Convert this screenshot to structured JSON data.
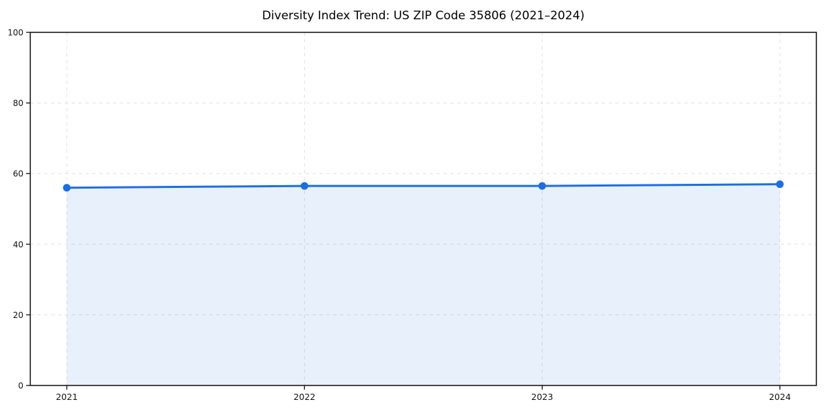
{
  "chart_data": {
    "type": "area",
    "title": "Diversity Index Trend: US ZIP Code 35806 (2021–2024)",
    "categories": [
      "2021",
      "2022",
      "2023",
      "2024"
    ],
    "series": [
      {
        "name": "Diversity Index",
        "values": [
          56,
          56.5,
          56.5,
          57
        ]
      }
    ],
    "xlabel": "",
    "ylabel": "",
    "ylim": [
      0,
      100
    ],
    "yticks": [
      0,
      20,
      40,
      60,
      80,
      100
    ],
    "grid": "dashed",
    "legend_position": "none",
    "line_color": "#1b6ee3",
    "marker_color": "#1b6ee3",
    "fill_color": "rgba(27,110,227,0.10)",
    "axis_color": "#1a1a1a",
    "gridline_color": "#e0e0e0",
    "background_color": "#ffffff"
  }
}
